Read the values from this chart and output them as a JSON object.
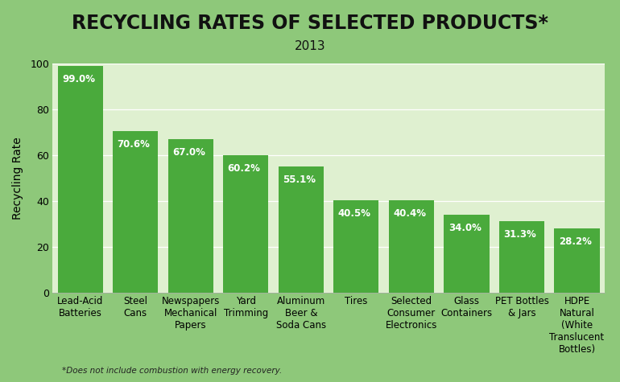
{
  "title": "RECYCLING RATES OF SELECTED PRODUCTS*",
  "subtitle": "2013",
  "ylabel": "Recycling Rate",
  "footnote": "*Does not include combustion with energy recovery.",
  "categories": [
    "Lead-Acid\nBatteries",
    "Steel\nCans",
    "Newspapers\nMechanical\nPapers",
    "Yard\nTrimming",
    "Aluminum\nBeer &\nSoda Cans",
    "Tires",
    "Selected\nConsumer\nElectronics",
    "Glass\nContainers",
    "PET Bottles\n& Jars",
    "HDPE\nNatural\n(White\nTranslucent\nBottles)"
  ],
  "values": [
    99.0,
    70.6,
    67.0,
    60.2,
    55.1,
    40.5,
    40.4,
    34.0,
    31.3,
    28.2
  ],
  "bar_color": "#4aaa3c",
  "background_color": "#8ec87a",
  "plot_bg_color": "#dff0d0",
  "title_color": "#111111",
  "ylim": [
    0,
    100
  ],
  "yticks": [
    0,
    20,
    40,
    60,
    80,
    100
  ],
  "title_fontsize": 17,
  "subtitle_fontsize": 11,
  "ylabel_fontsize": 10,
  "label_fontsize": 8.5,
  "tick_fontsize": 9,
  "footnote_fontsize": 7.5
}
